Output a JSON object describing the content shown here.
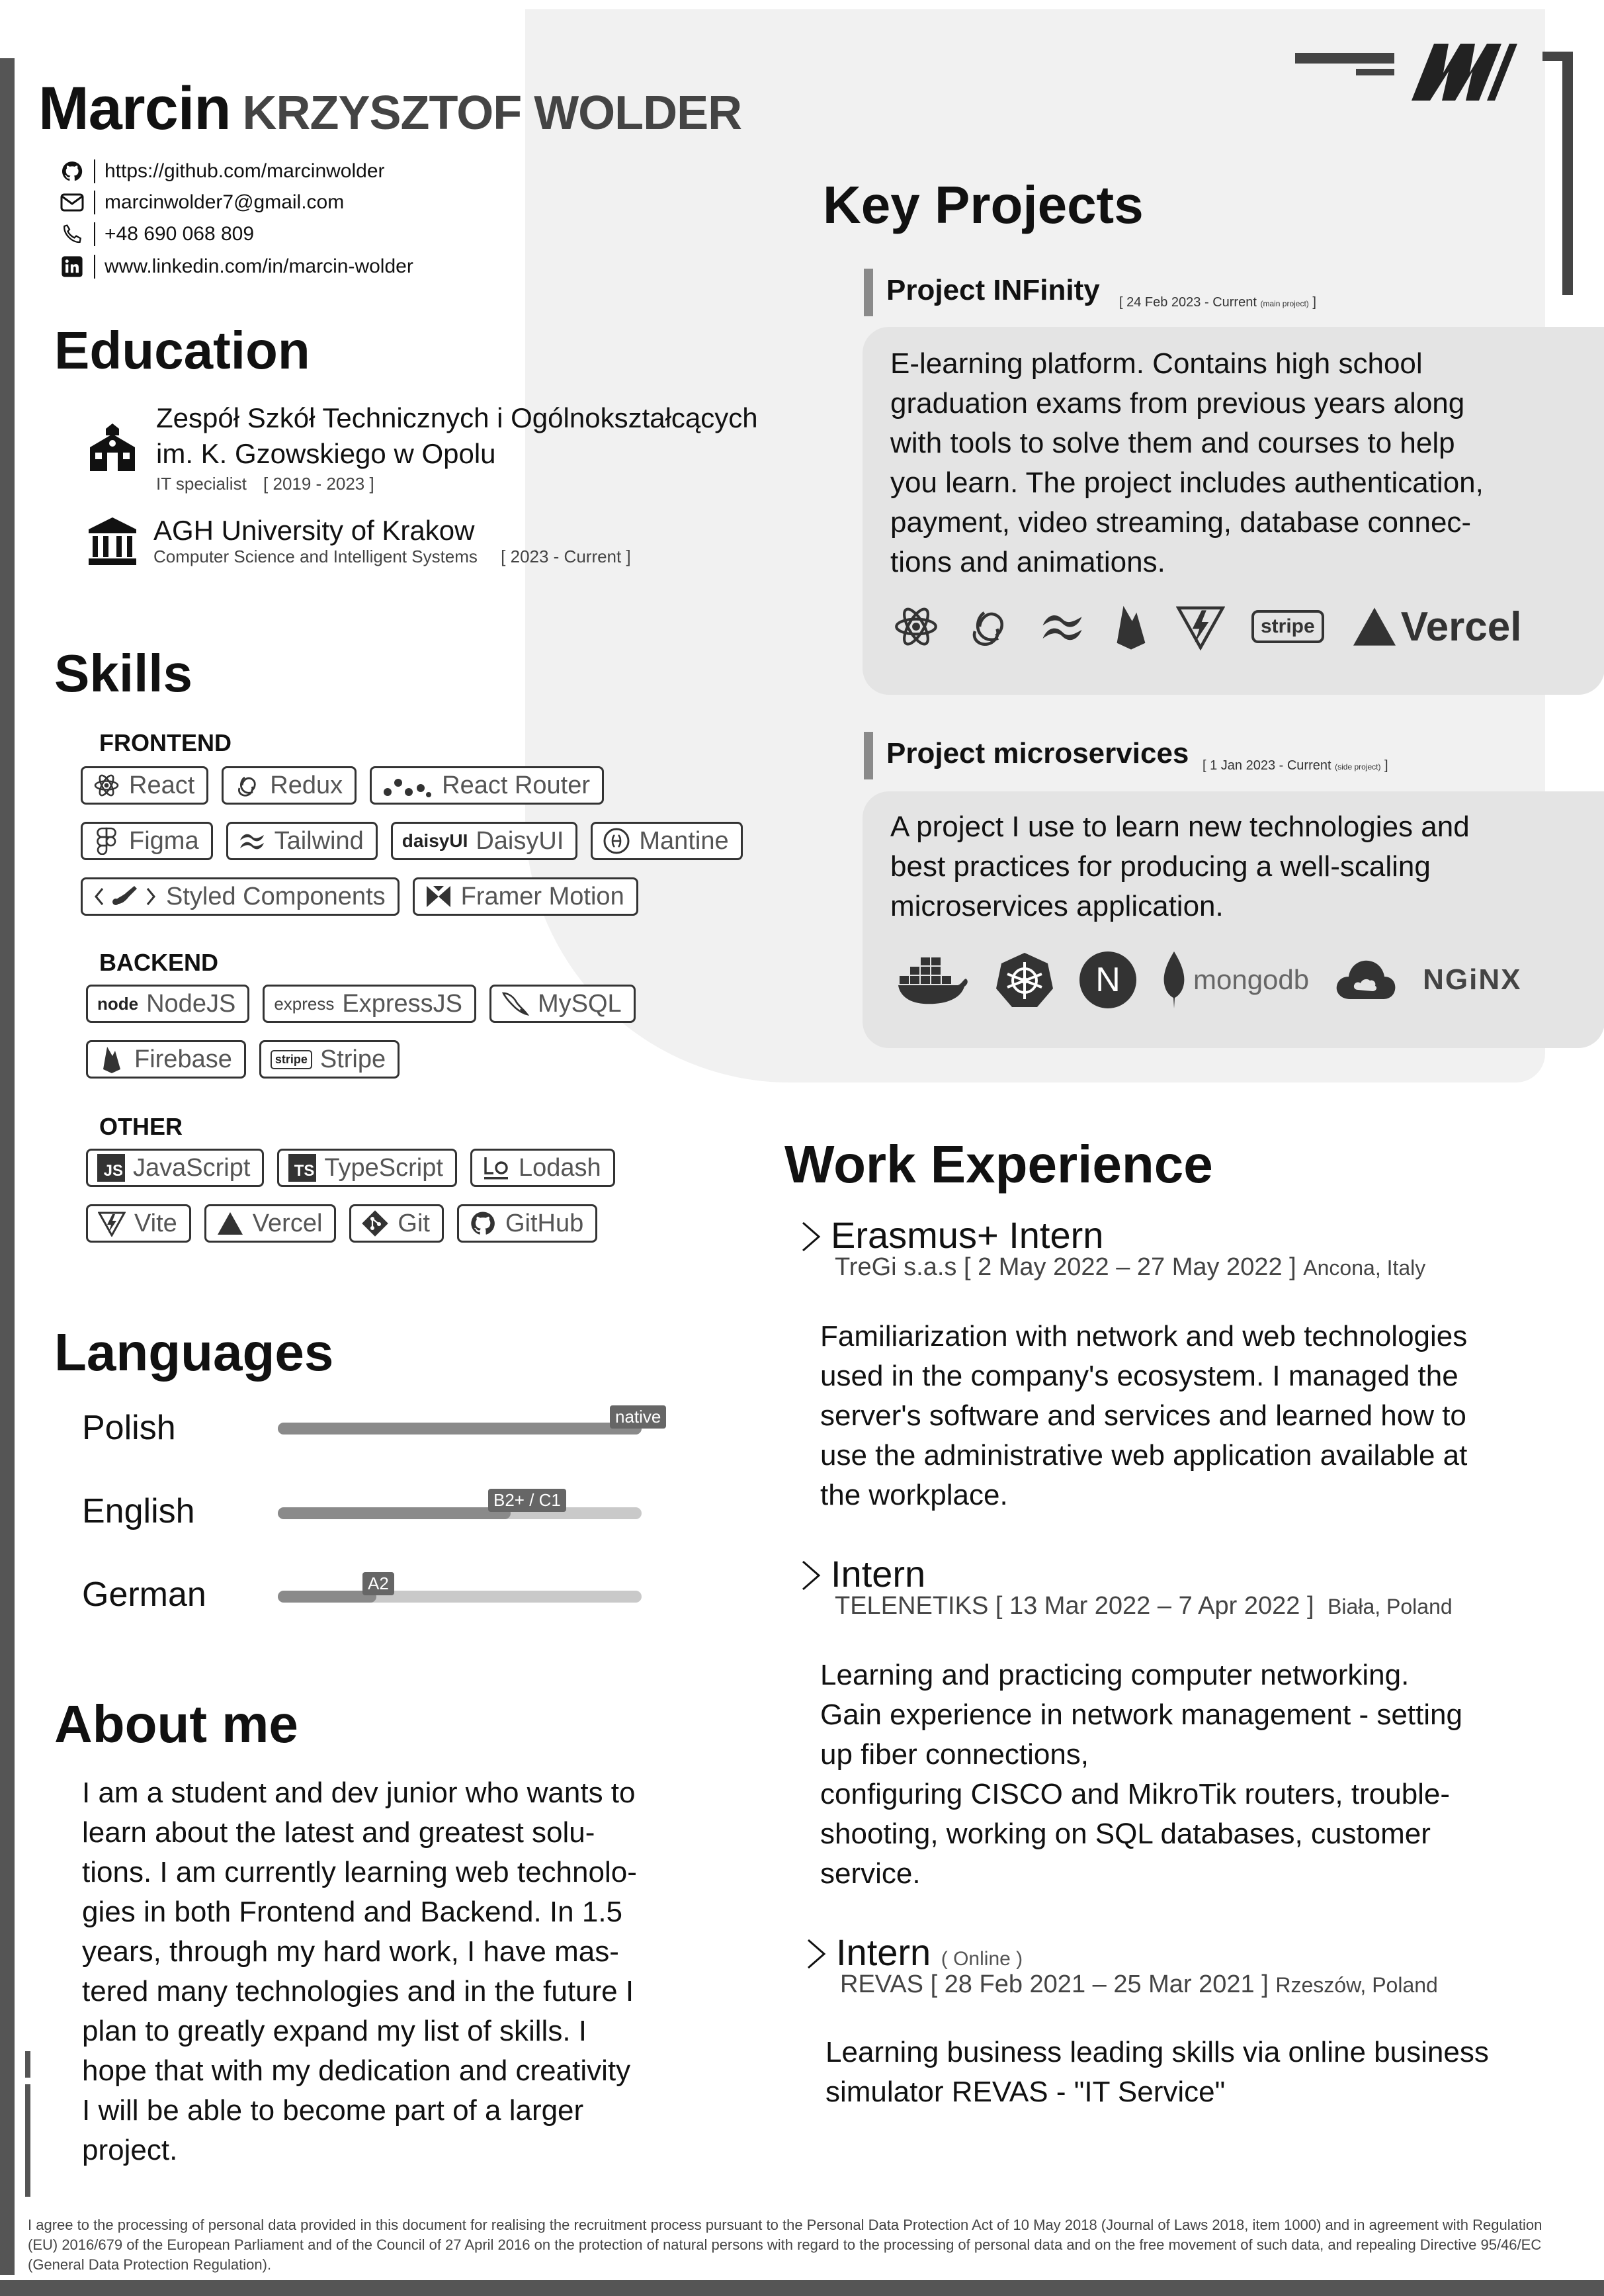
{
  "header": {
    "first_name": "Marcin",
    "last_name": "KRZYSZTOF WOLDER",
    "contacts": [
      {
        "icon": "github-icon",
        "text": "https://github.com/marcinwolder"
      },
      {
        "icon": "mail-icon",
        "text": "marcinwolder7@gmail.com"
      },
      {
        "icon": "phone-icon",
        "text": "+48 690 068 809"
      },
      {
        "icon": "linkedin-icon",
        "text": "www.linkedin.com/in/marcin-wolder"
      }
    ]
  },
  "education": {
    "title": "Education",
    "items": [
      {
        "icon": "school-icon",
        "name_line1": "Zespół Szkół Technicznych i Ogólnokształcących",
        "name_line2": "im. K. Gzowskiego w Opolu",
        "field": "IT specialist",
        "dates": "[ 2019 - 2023 ]"
      },
      {
        "icon": "university-icon",
        "name_line1": "AGH University of Krakow",
        "field": "Computer Science and Intelligent Systems",
        "dates": "[ 2023 - Current ]"
      }
    ]
  },
  "skills": {
    "title": "Skills",
    "frontend": {
      "label": "FRONTEND",
      "items": [
        {
          "icon": "react-icon",
          "label": "React"
        },
        {
          "icon": "redux-icon",
          "label": "Redux"
        },
        {
          "icon": "react-router-icon",
          "label": "React Router"
        },
        {
          "icon": "figma-icon",
          "label": "Figma"
        },
        {
          "icon": "tailwind-icon",
          "label": "Tailwind"
        },
        {
          "icon": "daisyui-icon",
          "label": "DaisyUI",
          "icon_text": "daisyUI"
        },
        {
          "icon": "mantine-icon",
          "label": "Mantine"
        },
        {
          "icon": "styled-components-icon",
          "label": "Styled Components"
        },
        {
          "icon": "framer-motion-icon",
          "label": "Framer Motion"
        }
      ]
    },
    "backend": {
      "label": "BACKEND",
      "items": [
        {
          "icon": "nodejs-icon",
          "label": "NodeJS",
          "icon_text": "node"
        },
        {
          "icon": "express-icon",
          "label": "ExpressJS",
          "icon_text": "express"
        },
        {
          "icon": "mysql-icon",
          "label": "MySQL"
        },
        {
          "icon": "firebase-icon",
          "label": "Firebase"
        },
        {
          "icon": "stripe-icon",
          "label": "Stripe",
          "icon_text": "stripe"
        }
      ]
    },
    "other": {
      "label": "OTHER",
      "items": [
        {
          "icon": "javascript-icon",
          "label": "JavaScript",
          "icon_text": "JS"
        },
        {
          "icon": "typescript-icon",
          "label": "TypeScript",
          "icon_text": "TS"
        },
        {
          "icon": "lodash-icon",
          "label": "Lodash"
        },
        {
          "icon": "vite-icon",
          "label": "Vite"
        },
        {
          "icon": "vercel-icon",
          "label": "Vercel"
        },
        {
          "icon": "git-icon",
          "label": "Git"
        },
        {
          "icon": "github-icon",
          "label": "GitHub"
        }
      ]
    }
  },
  "languages": {
    "title": "Languages",
    "items": [
      {
        "name": "Polish",
        "level": "native",
        "fraction": 1.0
      },
      {
        "name": "English",
        "level": "B2+ / C1",
        "fraction": 0.64
      },
      {
        "name": "German",
        "level": "A2",
        "fraction": 0.27
      }
    ]
  },
  "about": {
    "title": "About me",
    "lines": [
      "I am a student and dev junior who wants to",
      "learn about the latest and greatest solu-",
      "tions. I am currently learning web technolo-",
      "gies in both Frontend and Backend. In 1.5",
      "years, through my hard work, I have mas-",
      "tered many technologies and in the future I",
      "plan to greatly expand my list of skills. I",
      "hope that with my dedication and creativity",
      "I will be able to become part of a larger",
      "project."
    ]
  },
  "projects": {
    "title": "Key Projects",
    "items": [
      {
        "title": "Project INFinity",
        "date": "[ 24 Feb 2023 - Current",
        "tag": "(main project)",
        "date_end": "]",
        "lines": [
          "E-learning platform. Contains high school",
          "graduation exams from previous years along",
          "with tools to solve them and courses to help",
          "you learn. The project includes authentication,",
          "payment, video streaming, database connec-",
          "tions and animations."
        ],
        "tech": [
          "react-icon",
          "redux-icon",
          "tailwind-icon",
          "firebase-icon",
          "vite-icon",
          "stripe-icon",
          "vercel-icon"
        ],
        "stripe_text": "stripe",
        "vercel_text": "Vercel"
      },
      {
        "title": "Project microservices",
        "date": "[ 1 Jan 2023 - Current",
        "tag": "(side project)",
        "date_end": "]",
        "lines": [
          "A project I use to learn new technologies and",
          "best practices for producing a well-scaling",
          "microservices application."
        ],
        "tech": [
          "docker-icon",
          "kubernetes-icon",
          "nextjs-icon",
          "mongodb-icon",
          "cloud-icon",
          "nginx-icon"
        ],
        "next_text": "N",
        "mongodb_text": "mongodb",
        "nginx_text": "NGiNX"
      }
    ]
  },
  "work": {
    "title": "Work Experience",
    "items": [
      {
        "title": "Erasmus+ Intern",
        "note": "",
        "meta": "TreGi s.a.s [ 2 May 2022 – 27 May 2022 ]",
        "place": "Ancona, Italy",
        "lines": [
          "Familiarization with network and web technologies",
          "used in the company's ecosystem. I managed the",
          "server's software and services and learned how to",
          "use the administrative web application available at",
          "the workplace."
        ]
      },
      {
        "title": "Intern",
        "note": "",
        "meta": "TELENETIKS [ 13 Mar 2022 – 7 Apr 2022 ]",
        "place": "Biała, Poland",
        "lines": [
          "Learning and practicing computer networking.",
          "Gain experience in network management - setting",
          "up fiber connections,",
          "configuring CISCO and MikroTik routers, trouble-",
          "shooting, working on SQL databases, customer",
          "service."
        ]
      },
      {
        "title": "Intern",
        "note": "( Online )",
        "meta": "REVAS [ 28 Feb 2021 – 25 Mar 2021 ]",
        "place": "Rzeszów, Poland",
        "lines": [
          "Learning business leading skills via online business",
          "simulator REVAS - \"IT Service\""
        ]
      }
    ]
  },
  "consent": "I agree to the processing of personal data provided in this document for realising the recruitment process pursuant to the Personal Data Protection Act of 10 May 2018 (Journal of Laws 2018, item 1000) and in agreement with Regulation (EU) 2016/679 of the European Parliament and of the Council of 27 April 2016 on the protection of natural persons with regard to the processing of personal data and on the free movement of such data, and repealing Directive 95/46/EC (General Data Protection Regulation).",
  "colors": {
    "dark": "#111111",
    "gray": "#555555",
    "panel": "#f1f1f1",
    "box": "#e4e4e4",
    "bar_fill": "#8a8a8a",
    "bar_bg": "#c9c9c9"
  }
}
